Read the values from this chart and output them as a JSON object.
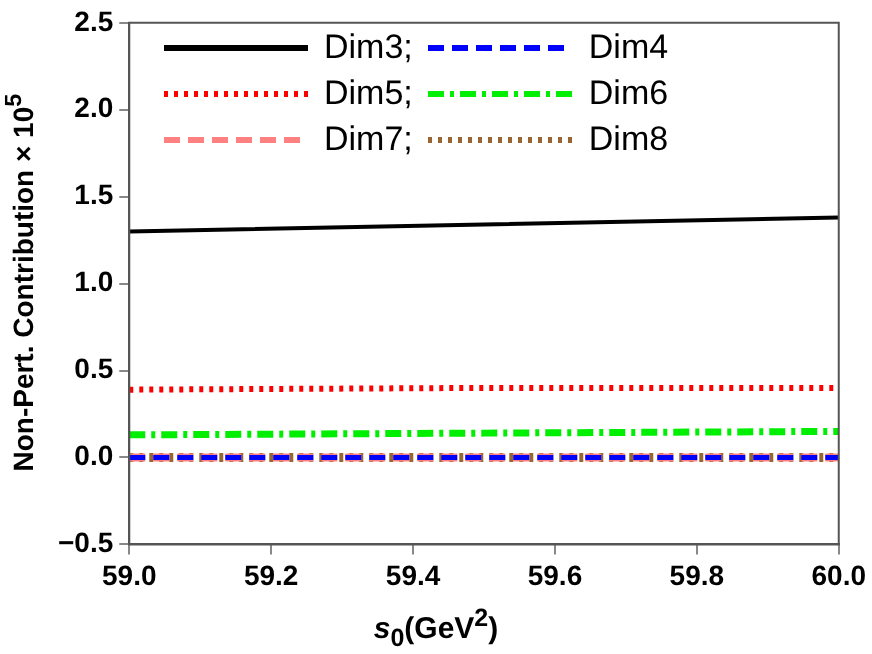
{
  "chart_data": {
    "type": "line",
    "xlabel": "s$_{0}$(GeV$^{2}$)",
    "ylabel": "Non-Pert. Contribution × 10$^{5}$",
    "x": [
      59,
      59.5,
      60
    ],
    "series": [
      {
        "name": "Dim3;",
        "color": "#000000",
        "line_style": "solid",
        "values": [
          1.3,
          1.34,
          1.38
        ]
      },
      {
        "name": "Dim4",
        "color": "#0000ff",
        "line_style": "dashed",
        "values": [
          0,
          0,
          0
        ]
      },
      {
        "name": "Dim5;",
        "color": "#ff0000",
        "line_style": "dotted",
        "values": [
          0.39,
          0.4,
          0.4
        ]
      },
      {
        "name": "Dim6",
        "color": "#00ee00",
        "line_style": "dashdot",
        "values": [
          0.13,
          0.14,
          0.15
        ]
      },
      {
        "name": "Dim7;",
        "color": "#ff8080",
        "line_style": "dashed",
        "values": [
          0,
          0,
          0
        ]
      },
      {
        "name": "Dim8",
        "color": "#996633",
        "line_style": "dotted",
        "values": [
          0,
          0,
          0
        ]
      }
    ],
    "xlim": [
      59,
      60
    ],
    "ylim": [
      -0.5,
      2.5
    ],
    "xticks": [
      {
        "value": 59,
        "label": "59.0"
      },
      {
        "value": 59.2,
        "label": "59.2"
      },
      {
        "value": 59.4,
        "label": "59.4"
      },
      {
        "value": 59.6,
        "label": "59.6"
      },
      {
        "value": 59.8,
        "label": "59.8"
      },
      {
        "value": 60,
        "label": "60.0"
      }
    ],
    "yticks": [
      {
        "value": -0.5,
        "label": "−0.5"
      },
      {
        "value": 0,
        "label": "0.0"
      },
      {
        "value": 0.5,
        "label": "0.5"
      },
      {
        "value": 1,
        "label": "1.0"
      },
      {
        "value": 1.5,
        "label": "1.5"
      },
      {
        "value": 2,
        "label": "2.0"
      },
      {
        "value": 2.5,
        "label": "2.5"
      }
    ],
    "grid": false,
    "legend": "top",
    "marker": "none"
  }
}
